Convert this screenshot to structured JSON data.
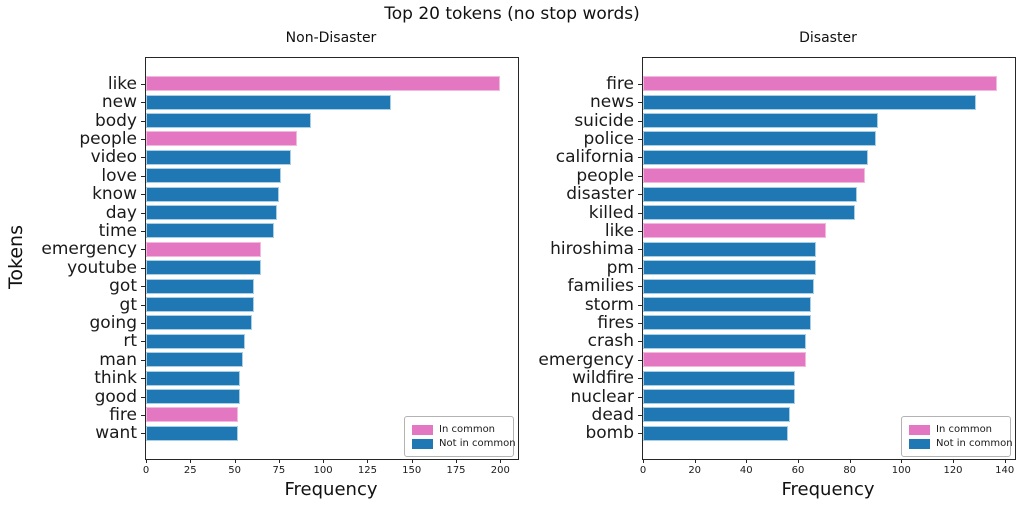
{
  "figure": {
    "suptitle": "Top 20 tokens (no stop words)",
    "ylabel": "Tokens",
    "xlabel": "Frequency"
  },
  "colors": {
    "in_common": "#e377c2",
    "not_in_common": "#1f77b4",
    "in_common_edge": "#f3b8de",
    "not_in_common_edge": "#a9cfe5",
    "spine": "#262626",
    "text": "#1a1a1a"
  },
  "legend": {
    "position": "lower right",
    "items": [
      {
        "label": "In common",
        "key": "in_common"
      },
      {
        "label": "Not in common",
        "key": "not_in_common"
      }
    ]
  },
  "chart_data": [
    {
      "type": "bar",
      "orientation": "horizontal",
      "title": "Non-Disaster",
      "xlabel": "Frequency",
      "ylabel": "Tokens",
      "xlim": [
        0,
        210
      ],
      "xticks": [
        0,
        25,
        50,
        75,
        100,
        125,
        150,
        175,
        200
      ],
      "grid": false,
      "legend_position": "lower right",
      "categories": [
        "like",
        "new",
        "body",
        "people",
        "video",
        "love",
        "know",
        "day",
        "time",
        "emergency",
        "youtube",
        "got",
        "gt",
        "going",
        "rt",
        "man",
        "think",
        "good",
        "fire",
        "want"
      ],
      "values": [
        200,
        138,
        93,
        85,
        82,
        76,
        75,
        74,
        72,
        65,
        65,
        61,
        61,
        60,
        56,
        55,
        53,
        53,
        52,
        52
      ],
      "in_common": [
        true,
        false,
        false,
        true,
        false,
        false,
        false,
        false,
        false,
        true,
        false,
        false,
        false,
        false,
        false,
        false,
        false,
        false,
        true,
        false
      ]
    },
    {
      "type": "bar",
      "orientation": "horizontal",
      "title": "Disaster",
      "xlabel": "Frequency",
      "ylabel": "Tokens",
      "xlim": [
        0,
        144
      ],
      "xticks": [
        0,
        20,
        40,
        60,
        80,
        100,
        120,
        140
      ],
      "grid": false,
      "legend_position": "lower right",
      "categories": [
        "fire",
        "news",
        "suicide",
        "police",
        "california",
        "people",
        "disaster",
        "killed",
        "like",
        "hiroshima",
        "pm",
        "families",
        "storm",
        "fires",
        "crash",
        "emergency",
        "wildfire",
        "nuclear",
        "dead",
        "bomb"
      ],
      "values": [
        137,
        129,
        91,
        90,
        87,
        86,
        83,
        82,
        71,
        67,
        67,
        66,
        65,
        65,
        63,
        63,
        59,
        59,
        57,
        56
      ],
      "in_common": [
        true,
        false,
        false,
        false,
        false,
        true,
        false,
        false,
        true,
        false,
        false,
        false,
        false,
        false,
        false,
        true,
        false,
        false,
        false,
        false
      ]
    }
  ]
}
